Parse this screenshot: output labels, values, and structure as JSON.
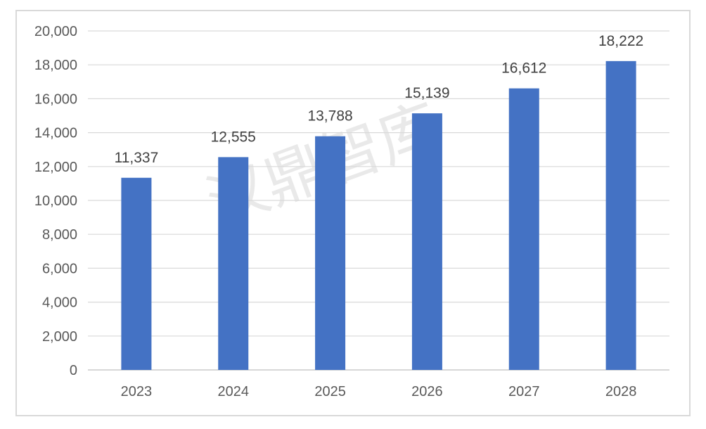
{
  "watermark": "汉鼎智库",
  "chart_data": {
    "type": "bar",
    "title": "",
    "xlabel": "",
    "ylabel": "",
    "categories": [
      "2023",
      "2024",
      "2025",
      "2026",
      "2027",
      "2028"
    ],
    "values": [
      11337,
      12555,
      13788,
      15139,
      16612,
      18222
    ],
    "value_labels": [
      "11,337",
      "12,555",
      "13,788",
      "15,139",
      "16,612",
      "18,222"
    ],
    "ylim": [
      0,
      20000
    ],
    "yticks": [
      0,
      2000,
      4000,
      6000,
      8000,
      10000,
      12000,
      14000,
      16000,
      18000,
      20000
    ],
    "ytick_labels": [
      "0",
      "2,000",
      "4,000",
      "6,000",
      "8,000",
      "10,000",
      "12,000",
      "14,000",
      "16,000",
      "18,000",
      "20,000"
    ],
    "grid": true,
    "legend": "none",
    "colors": {
      "bar": "#4472C4",
      "grid": "#d9d9d9",
      "axis": "#bfbfbf"
    }
  }
}
